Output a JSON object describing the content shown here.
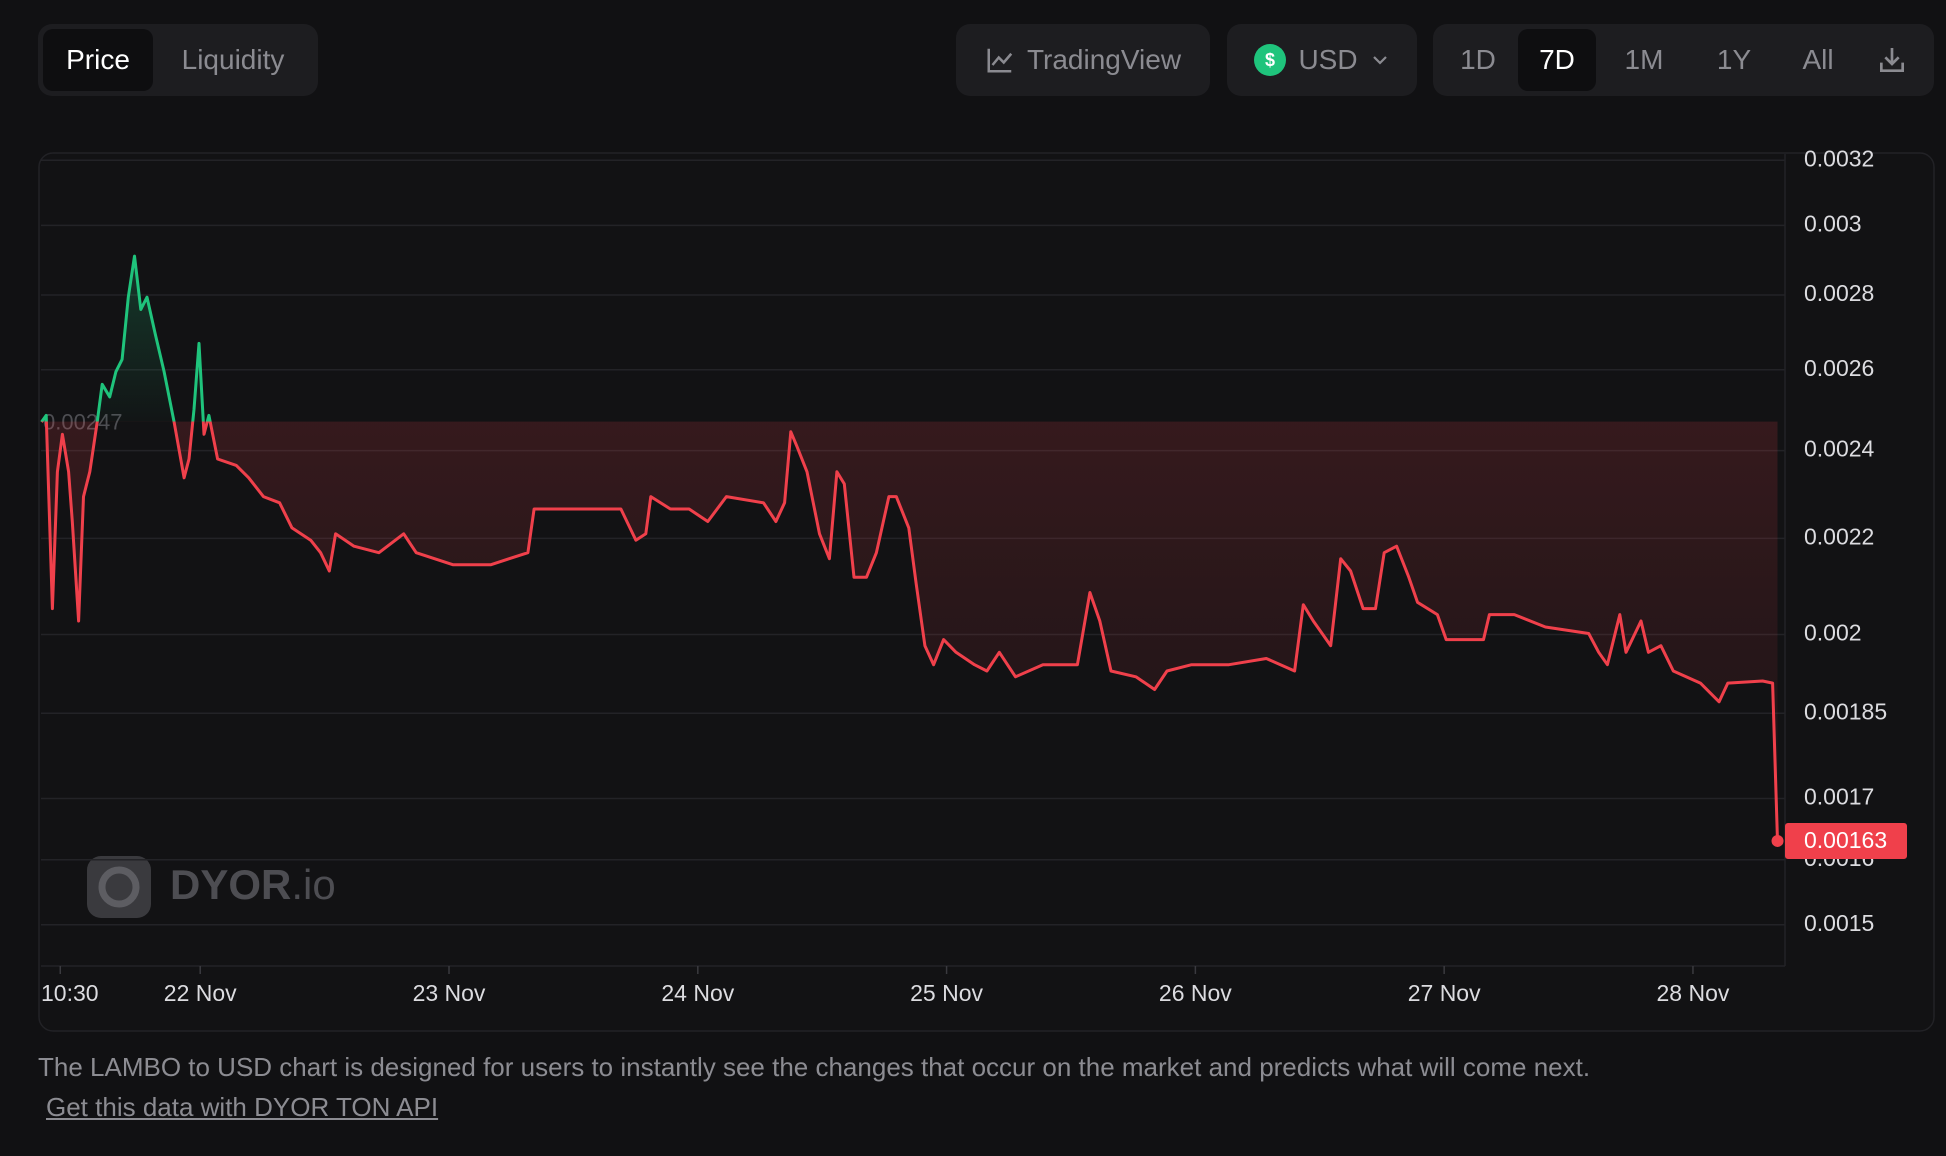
{
  "tabs": [
    "Price",
    "Liquidity"
  ],
  "controls": {
    "tradingview": "TradingView",
    "currency_symbol": "$",
    "currency": "USD",
    "periods": [
      "1D",
      "7D",
      "1M",
      "1Y",
      "All"
    ]
  },
  "watermark": {
    "brand": "DYOR",
    "suffix": ".io"
  },
  "chart_data": {
    "type": "line",
    "x": [
      21.362,
      21.381,
      21.406,
      21.426,
      21.446,
      21.471,
      21.486,
      21.511,
      21.531,
      21.556,
      21.586,
      21.606,
      21.636,
      21.661,
      21.686,
      21.711,
      21.736,
      21.761,
      21.786,
      21.82,
      21.855,
      21.895,
      21.935,
      21.955,
      21.975,
      21.995,
      22.015,
      22.035,
      22.07,
      22.145,
      22.195,
      22.254,
      22.319,
      22.369,
      22.444,
      22.484,
      22.519,
      22.544,
      22.618,
      22.718,
      22.818,
      22.868,
      23.017,
      23.167,
      23.242,
      23.317,
      23.342,
      23.466,
      23.566,
      23.691,
      23.751,
      23.791,
      23.811,
      23.89,
      23.965,
      24.04,
      24.115,
      24.264,
      24.314,
      24.349,
      24.374,
      24.399,
      24.439,
      24.489,
      24.529,
      24.559,
      24.589,
      24.628,
      24.678,
      24.718,
      24.768,
      24.798,
      24.848,
      24.878,
      24.913,
      24.948,
      24.988,
      25.038,
      25.112,
      25.162,
      25.212,
      25.277,
      25.387,
      25.526,
      25.576,
      25.616,
      25.661,
      25.761,
      25.836,
      25.886,
      25.985,
      26.135,
      26.285,
      26.399,
      26.434,
      26.474,
      26.544,
      26.584,
      26.624,
      26.674,
      26.724,
      26.759,
      26.809,
      26.858,
      26.893,
      26.973,
      27.008,
      27.158,
      27.182,
      27.282,
      27.407,
      27.581,
      27.621,
      27.656,
      27.706,
      27.731,
      27.791,
      27.821,
      27.871,
      27.921,
      28.03,
      28.105,
      28.14,
      28.28,
      28.32,
      28.34
    ],
    "values": [
      0.002469,
      0.002485,
      0.002052,
      0.00235,
      0.002439,
      0.00235,
      0.002237,
      0.002027,
      0.002293,
      0.00235,
      0.002469,
      0.002563,
      0.002531,
      0.002595,
      0.002627,
      0.002794,
      0.00291,
      0.00276,
      0.002794,
      0.002692,
      0.002595,
      0.002469,
      0.002336,
      0.00238,
      0.0025,
      0.002669,
      0.002439,
      0.002485,
      0.00238,
      0.002365,
      0.002336,
      0.002293,
      0.002279,
      0.002223,
      0.002196,
      0.002169,
      0.00213,
      0.00221,
      0.002183,
      0.002169,
      0.00221,
      0.002169,
      0.002143,
      0.002143,
      0.002156,
      0.002169,
      0.002265,
      0.002265,
      0.002265,
      0.002265,
      0.002196,
      0.00221,
      0.002293,
      0.002265,
      0.002265,
      0.002237,
      0.002293,
      0.002279,
      0.002237,
      0.002279,
      0.002445,
      0.002409,
      0.00235,
      0.00221,
      0.002156,
      0.00235,
      0.002322,
      0.002117,
      0.002117,
      0.002169,
      0.002293,
      0.002293,
      0.002223,
      0.002103,
      0.001978,
      0.001941,
      0.00199,
      0.001965,
      0.001941,
      0.001929,
      0.001965,
      0.001918,
      0.001941,
      0.001941,
      0.002085,
      0.002027,
      0.001929,
      0.001918,
      0.001894,
      0.001929,
      0.001941,
      0.001941,
      0.001953,
      0.001929,
      0.00206,
      0.002027,
      0.001978,
      0.002156,
      0.00213,
      0.002052,
      0.002052,
      0.002169,
      0.002183,
      0.002117,
      0.002065,
      0.00204,
      0.00199,
      0.00199,
      0.00204,
      0.00204,
      0.002015,
      0.002002,
      0.001965,
      0.001941,
      0.00204,
      0.001965,
      0.002027,
      0.001965,
      0.001978,
      0.001929,
      0.001906,
      0.001871,
      0.001906,
      0.00191,
      0.001906,
      0.00163
    ],
    "baseline": 0.00247,
    "color_up": "#1fc47c",
    "color_down": "#f0404b",
    "xlim": [
      21.36,
      28.37
    ],
    "xticks": [
      {
        "value": 21.4375,
        "label": "10:30"
      },
      {
        "value": 22,
        "label": "22 Nov"
      },
      {
        "value": 23,
        "label": "23 Nov"
      },
      {
        "value": 24,
        "label": "24 Nov"
      },
      {
        "value": 25,
        "label": "25 Nov"
      },
      {
        "value": 26,
        "label": "26 Nov"
      },
      {
        "value": 27,
        "label": "27 Nov"
      },
      {
        "value": 28,
        "label": "28 Nov"
      }
    ],
    "ylim": [
      0.00144,
      0.00322
    ],
    "yticks": [
      0.0015,
      0.0016,
      0.0017,
      0.00185,
      0.002,
      0.0022,
      0.0024,
      0.0026,
      0.0028,
      0.003,
      0.0032
    ],
    "yscale": "log",
    "grid": true
  },
  "footer": {
    "description": "The LAMBO to USD chart is designed for users to instantly see the changes that occur on the market and predicts what will come next.",
    "link": "Get this data with DYOR TON API"
  }
}
